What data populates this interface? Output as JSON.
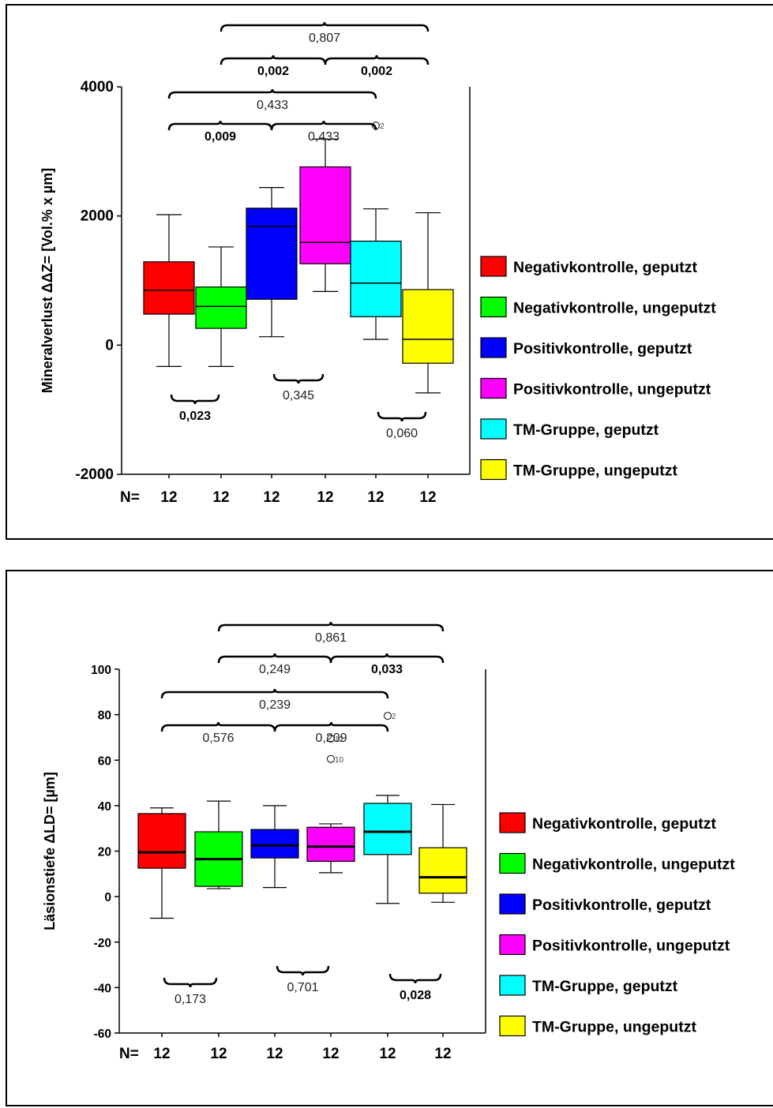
{
  "charts": [
    {
      "ylabel": "Mineralverlust ΔΔZ= [Vol.% x µm]",
      "n_label": "N=",
      "chart_data": {
        "type": "boxplot",
        "ylim": [
          -2000,
          4000
        ],
        "yticks": [
          "4000",
          "2000",
          "0",
          "-2000"
        ],
        "ytick_values": [
          4000,
          2000,
          0,
          -2000
        ],
        "groups": [
          {
            "name": "Negativkontrolle, geputzt",
            "color": "#ff0000",
            "n": "12",
            "min": -330,
            "q1": 480,
            "median": 850,
            "q3": 1290,
            "max": 2020
          },
          {
            "name": "Negativkontrolle, ungeputzt",
            "color": "#00ff00",
            "n": "12",
            "min": -330,
            "q1": 260,
            "median": 600,
            "q3": 900,
            "max": 1520
          },
          {
            "name": "Positivkontrolle, geputzt",
            "color": "#0000ff",
            "n": "12",
            "min": 130,
            "q1": 710,
            "median": 1840,
            "q3": 2120,
            "max": 2440
          },
          {
            "name": "Positivkontrolle, ungeputzt",
            "color": "#ff00ff",
            "n": "12",
            "min": 830,
            "q1": 1260,
            "median": 1590,
            "q3": 2760,
            "max": 3190
          },
          {
            "name": "TM-Gruppe, geputzt",
            "color": "#00ffff",
            "n": "12",
            "min": 90,
            "q1": 440,
            "median": 960,
            "q3": 1610,
            "max": 2110
          },
          {
            "name": "TM-Gruppe, ungeputzt",
            "color": "#ffff00",
            "n": "12",
            "min": -740,
            "q1": -280,
            "median": 90,
            "q3": 860,
            "max": 2050
          }
        ],
        "outliers": [
          {
            "group": 4,
            "value": 3400,
            "label": "2"
          }
        ],
        "brackets_above": [
          {
            "from": 1,
            "to": 5,
            "label": "0,807",
            "bold": false,
            "level": "top"
          },
          {
            "from": 1,
            "to": 3,
            "label": "0,002",
            "bold": true,
            "level": "second"
          },
          {
            "from": 3,
            "to": 5,
            "label": "0,002",
            "bold": true,
            "level": "second"
          },
          {
            "from": 0,
            "to": 4,
            "label": "0,433",
            "bold": false,
            "level": "third"
          },
          {
            "from": 0,
            "to": 2,
            "label": "0,009",
            "bold": true,
            "level": "fourth"
          },
          {
            "from": 2,
            "to": 4,
            "label": "0,433",
            "bold": false,
            "level": "fourth"
          }
        ],
        "brackets_below": [
          {
            "from": 0,
            "to": 1,
            "label": "0,023",
            "bold": true
          },
          {
            "from": 2,
            "to": 3,
            "label": "0,345",
            "bold": false
          },
          {
            "from": 4,
            "to": 5,
            "label": "0,060",
            "bold": false
          }
        ]
      }
    },
    {
      "ylabel": "Läsionstiefe ΔLD= [µm]",
      "n_label": "N=",
      "chart_data": {
        "type": "boxplot",
        "ylim": [
          -60,
          100
        ],
        "yticks": [
          "100",
          "80",
          "60",
          "40",
          "20",
          "0",
          "-20",
          "-40",
          "-60"
        ],
        "ytick_values": [
          100,
          80,
          60,
          40,
          20,
          0,
          -20,
          -40,
          -60
        ],
        "groups": [
          {
            "name": "Negativkontrolle, geputzt",
            "color": "#ff0000",
            "n": "12",
            "min": -9.5,
            "q1": 12.5,
            "median": 19.5,
            "q3": 36.5,
            "max": 39
          },
          {
            "name": "Negativkontrolle, ungeputzt",
            "color": "#00ff00",
            "n": "12",
            "min": 3.5,
            "q1": 4.5,
            "median": 16.5,
            "q3": 28.5,
            "max": 42
          },
          {
            "name": "Positivkontrolle, geputzt",
            "color": "#0000ff",
            "n": "12",
            "min": 4,
            "q1": 17,
            "median": 22.5,
            "q3": 29.5,
            "max": 40
          },
          {
            "name": "Positivkontrolle, ungeputzt",
            "color": "#ff00ff",
            "n": "12",
            "min": 10.5,
            "q1": 15.5,
            "median": 22,
            "q3": 30.5,
            "max": 32
          },
          {
            "name": "TM-Gruppe, geputzt",
            "color": "#00ffff",
            "n": "12",
            "min": -3,
            "q1": 18.5,
            "median": 28.5,
            "q3": 41,
            "max": 44.5
          },
          {
            "name": "TM-Gruppe, ungeputzt",
            "color": "#ffff00",
            "n": "12",
            "min": -2.5,
            "q1": 1.5,
            "median": 8.5,
            "q3": 21.5,
            "max": 40.5
          }
        ],
        "outliers": [
          {
            "group": 3,
            "value": 69.5,
            "label": "12"
          },
          {
            "group": 3,
            "value": 60.5,
            "label": "10"
          },
          {
            "group": 4,
            "value": 79.5,
            "label": "2"
          }
        ],
        "brackets_above": [
          {
            "from": 1,
            "to": 5,
            "label": "0,861",
            "bold": false,
            "level": "top"
          },
          {
            "from": 1,
            "to": 3,
            "label": "0,249",
            "bold": false,
            "level": "second"
          },
          {
            "from": 3,
            "to": 5,
            "label": "0,033",
            "bold": true,
            "level": "second"
          },
          {
            "from": 0,
            "to": 4,
            "label": "0,239",
            "bold": false,
            "level": "third"
          },
          {
            "from": 0,
            "to": 2,
            "label": "0,576",
            "bold": false,
            "level": "fourth"
          },
          {
            "from": 2,
            "to": 4,
            "label": "0,209",
            "bold": false,
            "level": "fourth"
          }
        ],
        "brackets_below": [
          {
            "from": 0,
            "to": 1,
            "label": "0,173",
            "bold": false
          },
          {
            "from": 2,
            "to": 3,
            "label": "0,701",
            "bold": false
          },
          {
            "from": 4,
            "to": 5,
            "label": "0,028",
            "bold": true
          }
        ]
      }
    }
  ]
}
